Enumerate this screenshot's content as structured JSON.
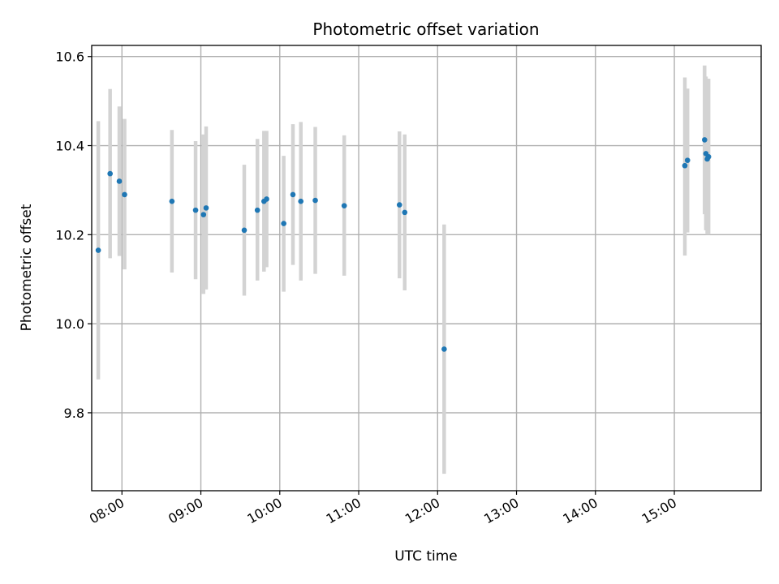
{
  "chart_data": {
    "type": "scatter",
    "title": "Photometric offset variation",
    "xlabel": "UTC time",
    "ylabel": "Photometric offset",
    "x_axis": {
      "kind": "time",
      "range": [
        "07:37",
        "16:06"
      ],
      "ticks": [
        "08:00",
        "09:00",
        "10:00",
        "11:00",
        "12:00",
        "13:00",
        "14:00",
        "15:00"
      ]
    },
    "y_axis": {
      "range": [
        9.625,
        10.625
      ],
      "ticks": [
        9.8,
        10.0,
        10.2,
        10.4,
        10.6
      ],
      "tick_labels": [
        "9.8",
        "10.0",
        "10.2",
        "10.4",
        "10.6"
      ]
    },
    "grid": true,
    "point_color": "#1f77b4",
    "errorbar_color": "#d3d3d3",
    "points": [
      {
        "t": "07:42",
        "y": 10.165,
        "lo": 9.875,
        "hi": 10.455
      },
      {
        "t": "07:51",
        "y": 10.337,
        "lo": 10.147,
        "hi": 10.527
      },
      {
        "t": "07:58",
        "y": 10.32,
        "lo": 10.152,
        "hi": 10.488
      },
      {
        "t": "08:02",
        "y": 10.29,
        "lo": 10.122,
        "hi": 10.46
      },
      {
        "t": "08:38",
        "y": 10.275,
        "lo": 10.115,
        "hi": 10.435
      },
      {
        "t": "08:56",
        "y": 10.255,
        "lo": 10.1,
        "hi": 10.41
      },
      {
        "t": "09:02",
        "y": 10.245,
        "lo": 10.067,
        "hi": 10.425
      },
      {
        "t": "09:04",
        "y": 10.26,
        "lo": 10.077,
        "hi": 10.443
      },
      {
        "t": "09:33",
        "y": 10.21,
        "lo": 10.063,
        "hi": 10.357
      },
      {
        "t": "09:43",
        "y": 10.255,
        "lo": 10.097,
        "hi": 10.415
      },
      {
        "t": "09:48",
        "y": 10.275,
        "lo": 10.117,
        "hi": 10.433
      },
      {
        "t": "09:50",
        "y": 10.28,
        "lo": 10.127,
        "hi": 10.433
      },
      {
        "t": "10:03",
        "y": 10.225,
        "lo": 10.072,
        "hi": 10.377
      },
      {
        "t": "10:10",
        "y": 10.29,
        "lo": 10.132,
        "hi": 10.448
      },
      {
        "t": "10:16",
        "y": 10.275,
        "lo": 10.097,
        "hi": 10.453
      },
      {
        "t": "10:27",
        "y": 10.277,
        "lo": 10.112,
        "hi": 10.442
      },
      {
        "t": "10:49",
        "y": 10.265,
        "lo": 10.108,
        "hi": 10.423
      },
      {
        "t": "11:31",
        "y": 10.267,
        "lo": 10.102,
        "hi": 10.432
      },
      {
        "t": "11:35",
        "y": 10.25,
        "lo": 10.075,
        "hi": 10.425
      },
      {
        "t": "12:05",
        "y": 9.943,
        "lo": 9.663,
        "hi": 10.223
      },
      {
        "t": "15:08",
        "y": 10.355,
        "lo": 10.153,
        "hi": 10.553
      },
      {
        "t": "15:10",
        "y": 10.367,
        "lo": 10.205,
        "hi": 10.528
      },
      {
        "t": "15:23",
        "y": 10.413,
        "lo": 10.246,
        "hi": 10.58
      },
      {
        "t": "15:24",
        "y": 10.382,
        "lo": 10.21,
        "hi": 10.555
      },
      {
        "t": "15:25",
        "y": 10.37,
        "lo": 10.2,
        "hi": 10.55
      },
      {
        "t": "15:26",
        "y": 10.375,
        "lo": 10.2,
        "hi": 10.55
      }
    ]
  }
}
